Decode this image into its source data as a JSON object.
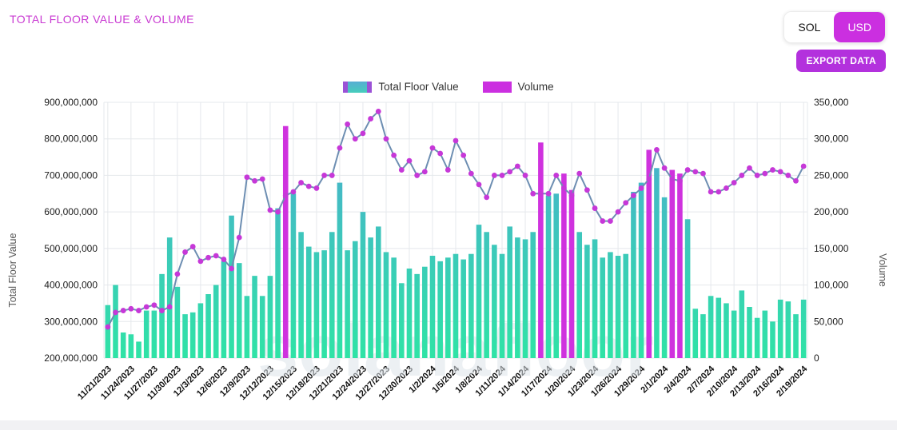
{
  "header": {
    "title": "TOTAL FLOOR VALUE & VOLUME",
    "currency_toggle": {
      "options": [
        "SOL",
        "USD"
      ],
      "selected": "USD"
    },
    "export_button_label": "EXPORT DATA"
  },
  "legend": [
    {
      "label": "Total Floor Value",
      "swatch_fill": "#57aed3",
      "swatch_border": "#9b51d6"
    },
    {
      "label": "Volume",
      "swatch_fill": "#cb2fe0",
      "swatch_border": "#9b51d6"
    }
  ],
  "watermark": "solanafloor",
  "colors": {
    "title": "#c93ad2",
    "usd_button": "#cb2fe0",
    "export_button": "#b331dd",
    "bar_gradient_top": "#4ea6d4",
    "bar_gradient_bottom": "#2fe3a6",
    "bar_highlight": "#cf32de",
    "line": "#6d8eb2",
    "marker": "#c638d8",
    "grid": "#e5e8ec",
    "tick_label": "#1b1b1b",
    "axis_title": "#555555",
    "watermark": "#dde4ea"
  },
  "chart_data": {
    "type": "combo",
    "x": [
      "11/21/2023",
      "11/22/2023",
      "11/23/2023",
      "11/24/2023",
      "11/25/2023",
      "11/26/2023",
      "11/27/2023",
      "11/28/2023",
      "11/29/2023",
      "11/30/2023",
      "12/1/2023",
      "12/2/2023",
      "12/3/2023",
      "12/4/2023",
      "12/5/2023",
      "12/6/2023",
      "12/7/2023",
      "12/8/2023",
      "12/9/2023",
      "12/10/2023",
      "12/11/2023",
      "12/12/2023",
      "12/13/2023",
      "12/14/2023",
      "12/15/2023",
      "12/16/2023",
      "12/17/2023",
      "12/18/2023",
      "12/19/2023",
      "12/20/2023",
      "12/21/2023",
      "12/22/2023",
      "12/23/2023",
      "12/24/2023",
      "12/25/2023",
      "12/26/2023",
      "12/27/2023",
      "12/28/2023",
      "12/29/2023",
      "12/30/2023",
      "12/31/2023",
      "1/1/2024",
      "1/2/2024",
      "1/3/2024",
      "1/4/2024",
      "1/5/2024",
      "1/6/2024",
      "1/7/2024",
      "1/8/2024",
      "1/9/2024",
      "1/10/2024",
      "1/11/2024",
      "1/12/2024",
      "1/13/2024",
      "1/14/2024",
      "1/15/2024",
      "1/16/2024",
      "1/17/2024",
      "1/18/2024",
      "1/19/2024",
      "1/20/2024",
      "1/21/2024",
      "1/22/2024",
      "1/23/2024",
      "1/24/2024",
      "1/25/2024",
      "1/26/2024",
      "1/27/2024",
      "1/28/2024",
      "1/29/2024",
      "1/30/2024",
      "1/31/2024",
      "2/1/2024",
      "2/2/2024",
      "2/3/2024",
      "2/4/2024",
      "2/5/2024",
      "2/6/2024",
      "2/7/2024",
      "2/8/2024",
      "2/9/2024",
      "2/10/2024",
      "2/11/2024",
      "2/12/2024",
      "2/13/2024",
      "2/14/2024",
      "2/15/2024",
      "2/16/2024",
      "2/17/2024",
      "2/18/2024",
      "2/19/2024"
    ],
    "x_tick_every": 3,
    "left_axis": {
      "label": "Total Floor Value",
      "min": 200000000,
      "max": 900000000,
      "tick_step": 100000000
    },
    "right_axis": {
      "label": "Volume",
      "min": 0,
      "max": 350000,
      "tick_step": 50000
    },
    "grid": true,
    "legend_position": "top",
    "series": [
      {
        "name": "Total Floor Value",
        "type": "bar",
        "axis": "left",
        "highlight_indices": [
          23,
          56,
          59,
          60,
          70,
          73,
          74
        ],
        "values": [
          345000000,
          400000000,
          270000000,
          265000000,
          245000000,
          330000000,
          330000000,
          430000000,
          530000000,
          395000000,
          320000000,
          325000000,
          350000000,
          375000000,
          400000000,
          465000000,
          590000000,
          460000000,
          370000000,
          425000000,
          370000000,
          425000000,
          610000000,
          835000000,
          650000000,
          545000000,
          505000000,
          490000000,
          495000000,
          545000000,
          680000000,
          495000000,
          520000000,
          600000000,
          530000000,
          560000000,
          490000000,
          475000000,
          405000000,
          445000000,
          430000000,
          450000000,
          480000000,
          465000000,
          475000000,
          485000000,
          470000000,
          485000000,
          565000000,
          545000000,
          510000000,
          485000000,
          560000000,
          530000000,
          525000000,
          545000000,
          790000000,
          645000000,
          650000000,
          705000000,
          660000000,
          545000000,
          510000000,
          525000000,
          475000000,
          490000000,
          480000000,
          485000000,
          655000000,
          680000000,
          770000000,
          720000000,
          640000000,
          715000000,
          705000000,
          580000000,
          335000000,
          320000000,
          370000000,
          365000000,
          350000000,
          330000000,
          385000000,
          340000000,
          310000000,
          330000000,
          300000000,
          360000000,
          355000000,
          320000000,
          360000000
        ]
      },
      {
        "name": "Volume",
        "type": "line",
        "axis": "right",
        "values": [
          42500,
          62500,
          65000,
          67500,
          65000,
          70000,
          72500,
          65000,
          70000,
          115000,
          145000,
          152500,
          132500,
          137500,
          140000,
          135000,
          122500,
          165000,
          247500,
          242500,
          245000,
          202500,
          200000,
          222500,
          227500,
          240000,
          235000,
          232500,
          250000,
          250000,
          287500,
          320000,
          300000,
          307500,
          327500,
          337500,
          300000,
          277500,
          257500,
          270000,
          250000,
          255000,
          287500,
          280000,
          257500,
          297500,
          277500,
          252500,
          237500,
          220000,
          250000,
          250000,
          255000,
          262500,
          250000,
          225000,
          225000,
          225000,
          250000,
          232500,
          222500,
          252500,
          230000,
          205000,
          187500,
          187500,
          200000,
          212500,
          222500,
          232500,
          245000,
          285000,
          260000,
          245000,
          242500,
          257500,
          255000,
          252500,
          227500,
          227500,
          232500,
          240000,
          250000,
          260000,
          250000,
          252500,
          257500,
          255000,
          250000,
          242500,
          262500
        ]
      }
    ]
  }
}
